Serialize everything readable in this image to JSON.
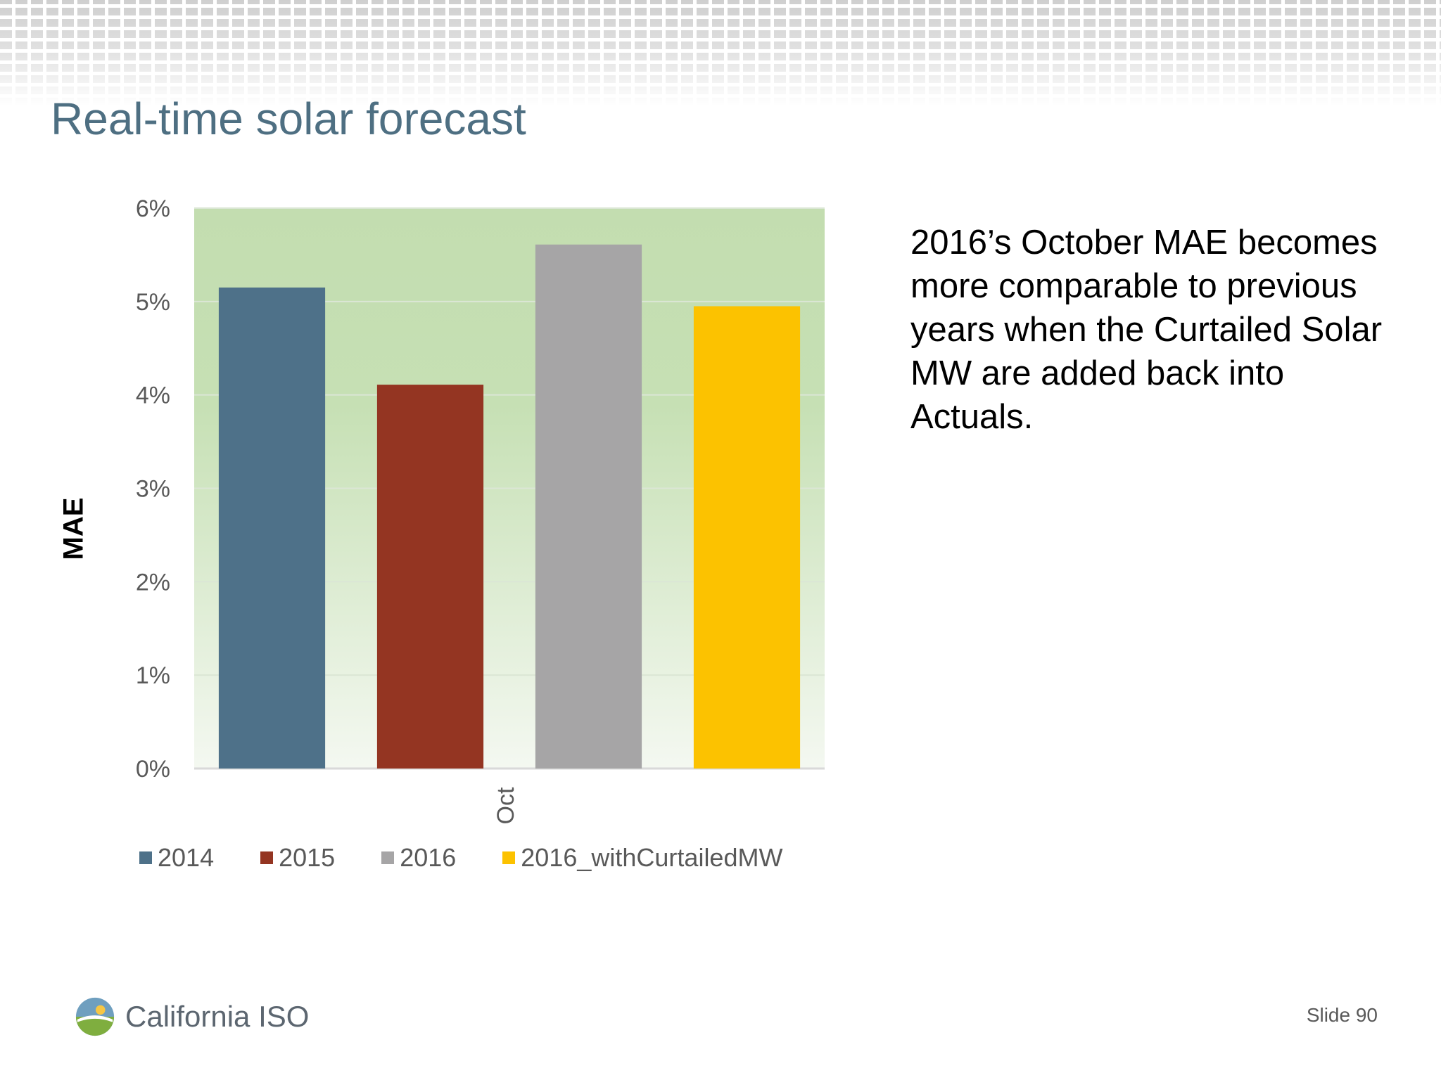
{
  "slide": {
    "title": "Real-time solar forecast",
    "annotation": "2016’s October MAE becomes more comparable to previous years when the Curtailed Solar MW are added back into Actuals.",
    "logo_text": "California ISO",
    "slide_number": "Slide 90"
  },
  "colors": {
    "title": "#4e6f82",
    "plot_bg_top": "#c3ddb0",
    "plot_bg_bottom": "#f4f8f1"
  },
  "chart_data": {
    "type": "bar",
    "title": "",
    "xlabel": "",
    "ylabel": "MAE",
    "categories": [
      "Oct"
    ],
    "ylim": [
      0,
      0.06
    ],
    "yticks": [
      0,
      0.01,
      0.02,
      0.03,
      0.04,
      0.05,
      0.06
    ],
    "ytick_labels": [
      "0%",
      "1%",
      "2%",
      "3%",
      "4%",
      "5%",
      "6%"
    ],
    "grid": true,
    "legend_position": "bottom",
    "series": [
      {
        "name": "2014",
        "values": [
          0.0515
        ],
        "color": "#4e7189"
      },
      {
        "name": "2015",
        "values": [
          0.0411
        ],
        "color": "#943522"
      },
      {
        "name": "2016",
        "values": [
          0.0561
        ],
        "color": "#a6a5a6"
      },
      {
        "name": "2016_withCurtailedMW",
        "values": [
          0.0495
        ],
        "color": "#fcc200"
      }
    ]
  }
}
